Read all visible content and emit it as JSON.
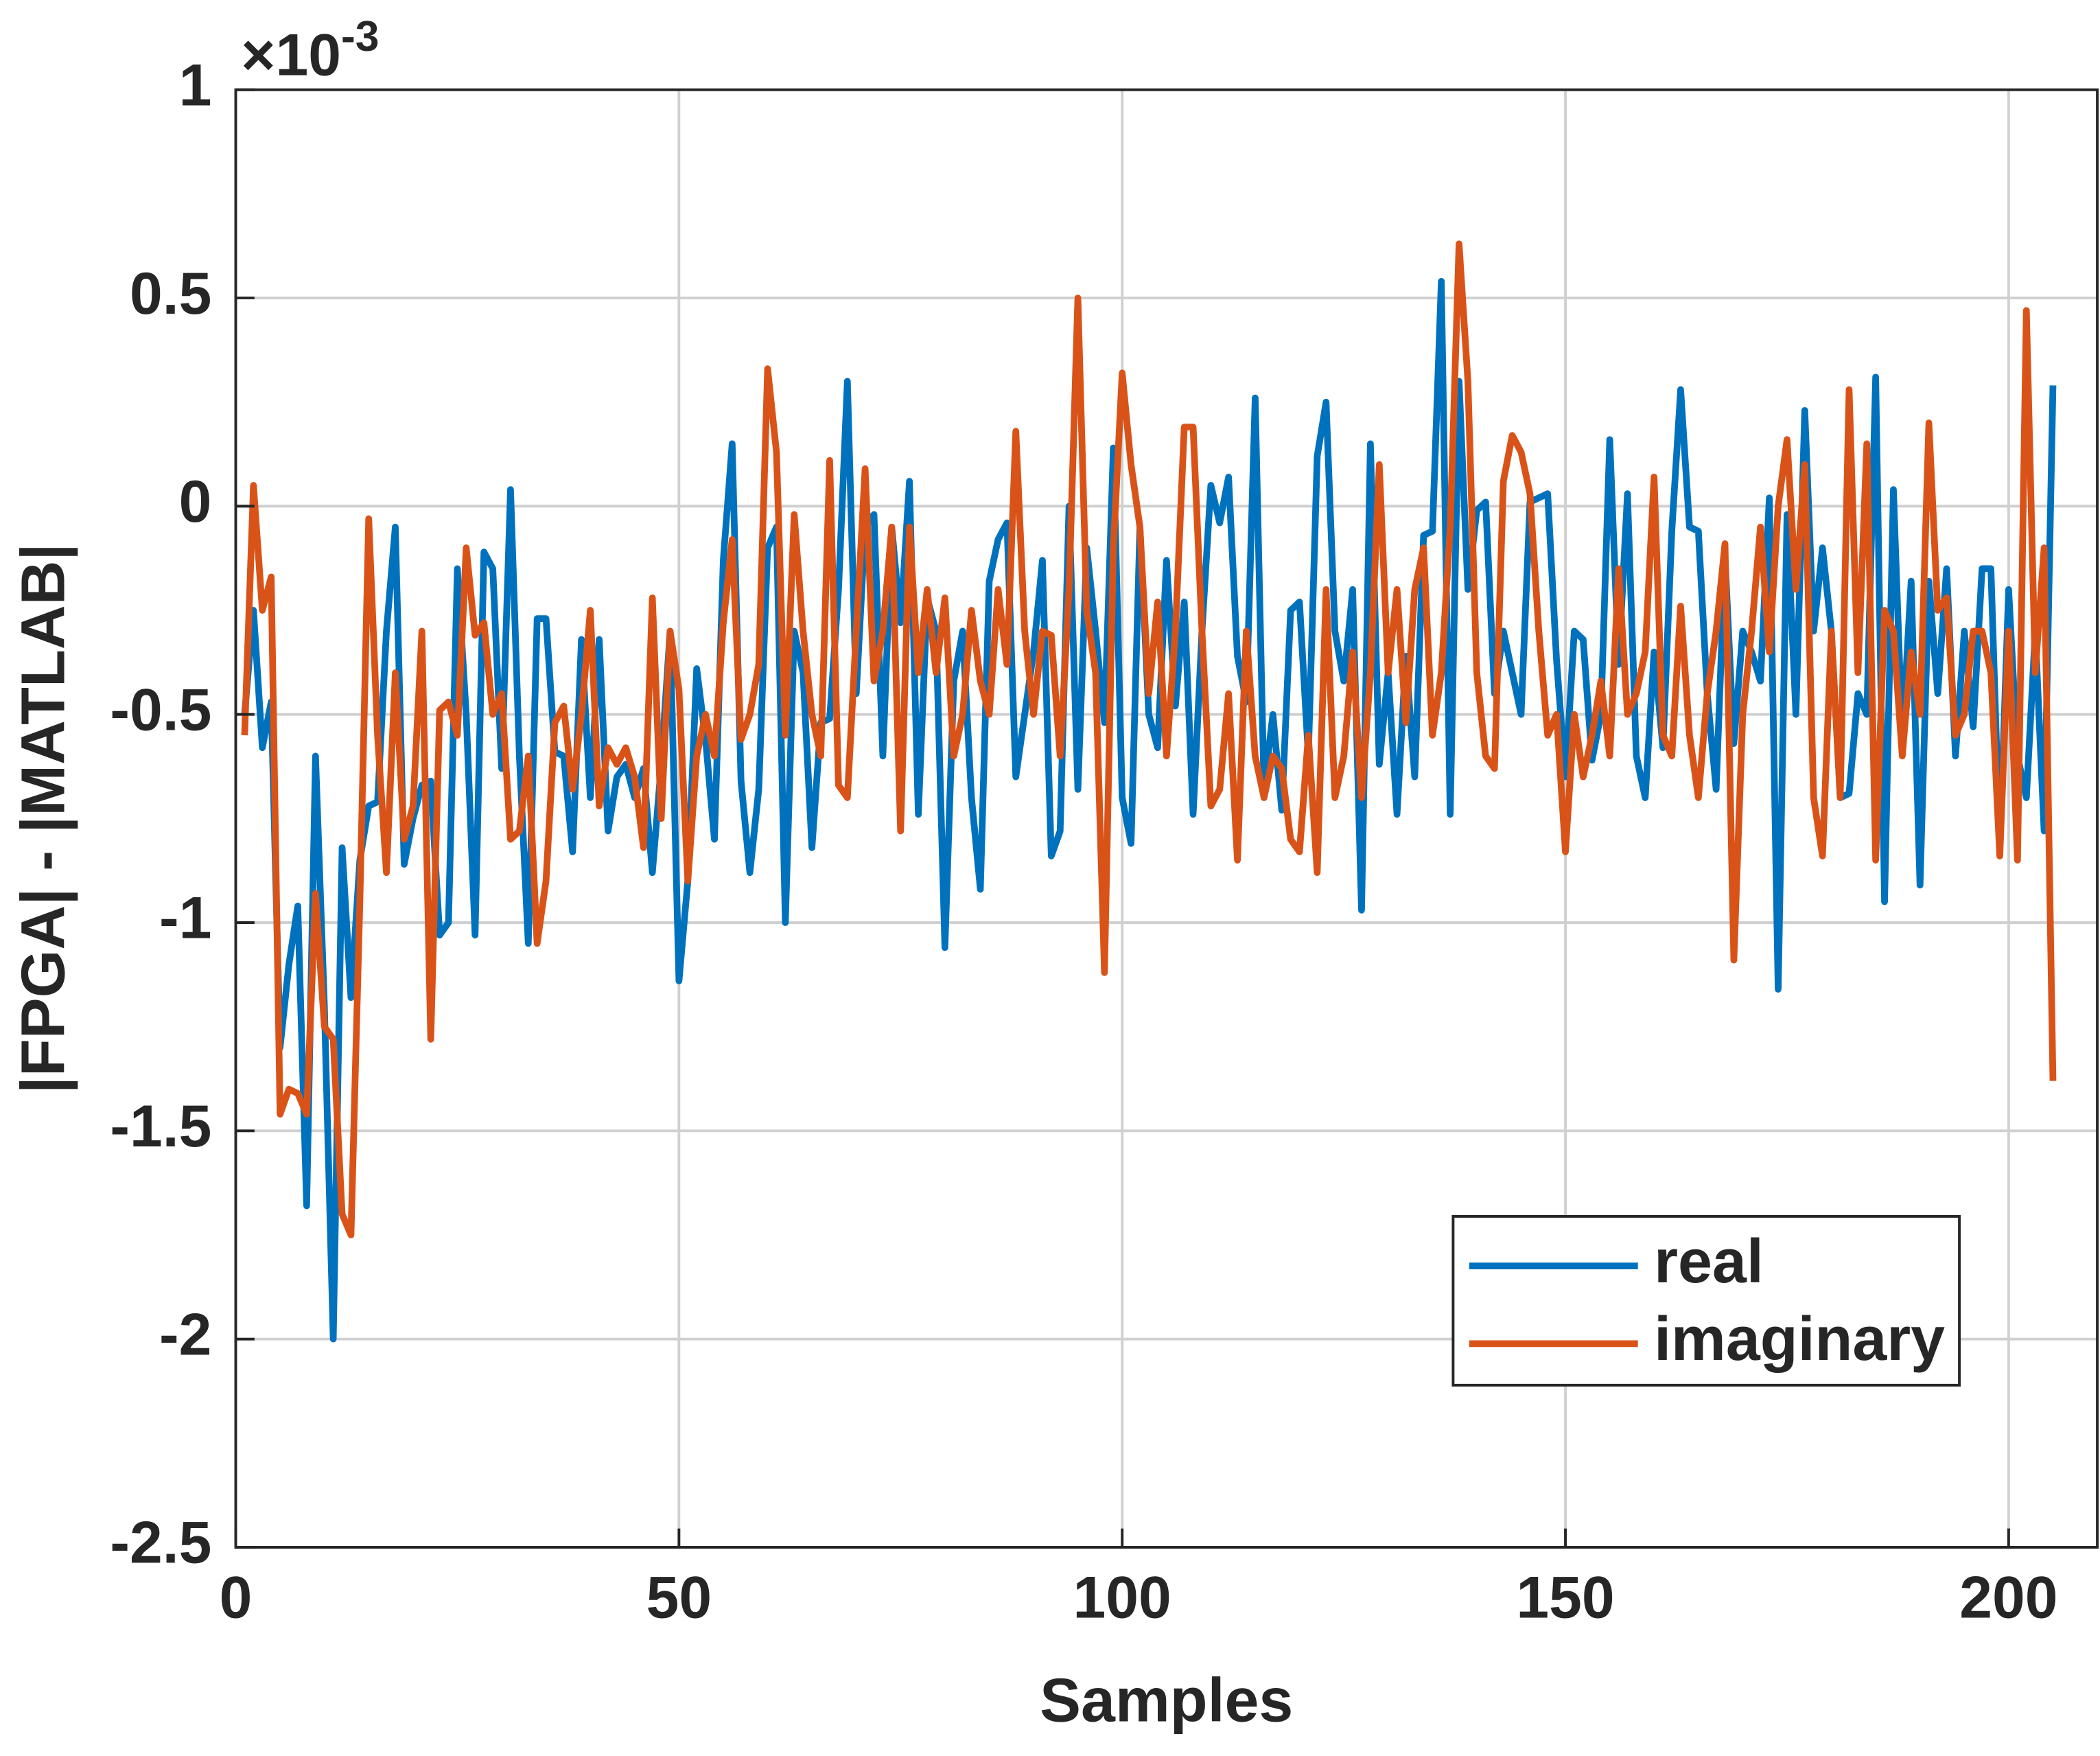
{
  "chart_data": {
    "type": "line",
    "xlabel": "Samples",
    "ylabel": "|FPGA| - |MATLAB|",
    "y_multiplier": {
      "base": "×10",
      "exponent": "-3"
    },
    "xlim": [
      0,
      210
    ],
    "xticks": [
      0,
      50,
      100,
      150,
      200
    ],
    "ylim": [
      -2.5,
      1
    ],
    "yticks": [
      -2.5,
      -2,
      -1.5,
      -1,
      -0.5,
      0,
      0.5,
      1
    ],
    "grid": true,
    "legend": "lower right",
    "x": [
      1,
      2,
      3,
      4,
      5,
      6,
      7,
      8,
      9,
      10,
      11,
      12,
      13,
      14,
      15,
      16,
      17,
      18,
      19,
      20,
      21,
      22,
      23,
      24,
      25,
      26,
      27,
      28,
      29,
      30,
      31,
      32,
      33,
      34,
      35,
      36,
      37,
      38,
      39,
      40,
      41,
      42,
      43,
      44,
      45,
      46,
      47,
      48,
      49,
      50,
      51,
      52,
      53,
      54,
      55,
      56,
      57,
      58,
      59,
      60,
      61,
      62,
      63,
      64,
      65,
      66,
      67,
      68,
      69,
      70,
      71,
      72,
      73,
      74,
      75,
      76,
      77,
      78,
      79,
      80,
      81,
      82,
      83,
      84,
      85,
      86,
      87,
      88,
      89,
      90,
      91,
      92,
      93,
      94,
      95,
      96,
      97,
      98,
      99,
      100,
      101,
      102,
      103,
      104,
      105,
      106,
      107,
      108,
      109,
      110,
      111,
      112,
      113,
      114,
      115,
      116,
      117,
      118,
      119,
      120,
      121,
      122,
      123,
      124,
      125,
      126,
      127,
      128,
      129,
      130,
      131,
      132,
      133,
      134,
      135,
      136,
      137,
      138,
      139,
      140,
      141,
      142,
      143,
      144,
      145,
      146,
      147,
      148,
      149,
      150,
      151,
      152,
      153,
      154,
      155,
      156,
      157,
      158,
      159,
      160,
      161,
      162,
      163,
      164,
      165,
      166,
      167,
      168,
      169,
      170,
      171,
      172,
      173,
      174,
      175,
      176,
      177,
      178,
      179,
      180,
      181,
      182,
      183,
      184,
      185,
      186,
      187,
      188,
      189,
      190,
      191,
      192,
      193,
      194,
      195,
      196,
      197,
      198,
      199,
      200,
      201,
      202,
      203,
      204,
      205
    ],
    "series": [
      {
        "name": "real",
        "color": "#0072bd",
        "values": [
          -0.5,
          -0.25,
          -0.58,
          -0.47,
          -1.3,
          -1.1,
          -0.96,
          -1.68,
          -0.6,
          -1.2,
          -2.0,
          -0.82,
          -1.18,
          -0.85,
          -0.72,
          -0.71,
          -0.3,
          -0.05,
          -0.86,
          -0.75,
          -0.67,
          -0.66,
          -1.03,
          -1.0,
          -0.15,
          -0.5,
          -1.03,
          -0.11,
          -0.15,
          -0.63,
          0.04,
          -0.6,
          -1.05,
          -0.27,
          -0.27,
          -0.59,
          -0.6,
          -0.83,
          -0.32,
          -0.7,
          -0.32,
          -0.78,
          -0.65,
          -0.62,
          -0.7,
          -0.63,
          -0.88,
          -0.62,
          -0.3,
          -1.14,
          -0.9,
          -0.39,
          -0.56,
          -0.8,
          -0.13,
          0.15,
          -0.66,
          -0.88,
          -0.68,
          -0.1,
          -0.05,
          -1.0,
          -0.3,
          -0.4,
          -0.82,
          -0.52,
          -0.51,
          -0.2,
          0.3,
          -0.45,
          -0.05,
          -0.02,
          -0.6,
          -0.05,
          -0.28,
          0.06,
          -0.74,
          -0.22,
          -0.3,
          -1.06,
          -0.42,
          -0.3,
          -0.7,
          -0.92,
          -0.18,
          -0.08,
          -0.04,
          -0.65,
          -0.5,
          -0.35,
          -0.13,
          -0.84,
          -0.78,
          0.0,
          -0.68,
          -0.1,
          -0.3,
          -0.52,
          0.14,
          -0.7,
          -0.81,
          -0.05,
          -0.5,
          -0.58,
          -0.13,
          -0.48,
          -0.23,
          -0.74,
          -0.3,
          0.05,
          -0.04,
          0.07,
          -0.36,
          -0.47,
          0.26,
          -0.68,
          -0.5,
          -0.73,
          -0.25,
          -0.23,
          -0.6,
          0.12,
          0.25,
          -0.3,
          -0.42,
          -0.2,
          -0.97,
          0.15,
          -0.62,
          -0.4,
          -0.74,
          -0.36,
          -0.65,
          -0.07,
          -0.06,
          0.54,
          -0.74,
          0.3,
          -0.2,
          -0.01,
          0.01,
          -0.45,
          -0.3,
          -0.4,
          -0.5,
          0.01,
          0.02,
          0.03,
          -0.37,
          -0.65,
          -0.3,
          -0.32,
          -0.61,
          -0.5,
          0.16,
          -0.38,
          0.03,
          -0.6,
          -0.7,
          -0.35,
          -0.58,
          -0.06,
          0.28,
          -0.05,
          -0.06,
          -0.45,
          -0.68,
          -0.12,
          -0.57,
          -0.3,
          -0.35,
          -0.42,
          0.02,
          -1.16,
          -0.02,
          -0.5,
          0.23,
          -0.3,
          -0.1,
          -0.3,
          -0.7,
          -0.69,
          -0.45,
          -0.5,
          0.31,
          -0.95,
          0.04,
          -0.56,
          -0.18,
          -0.91,
          -0.18,
          -0.45,
          -0.15,
          -0.6,
          -0.3,
          -0.53,
          -0.15,
          -0.15,
          -0.82,
          -0.2,
          -0.6,
          -0.7,
          -0.3,
          -0.78,
          0.29
        ]
      },
      {
        "name": "imaginary",
        "color": "#d95319",
        "values": [
          -0.55,
          0.05,
          -0.25,
          -0.17,
          -1.46,
          -1.4,
          -1.41,
          -1.46,
          -0.93,
          -1.25,
          -1.28,
          -1.7,
          -1.75,
          -0.95,
          -0.03,
          -0.55,
          -0.88,
          -0.4,
          -0.8,
          -0.72,
          -0.3,
          -1.28,
          -0.49,
          -0.47,
          -0.55,
          -0.1,
          -0.31,
          -0.28,
          -0.5,
          -0.45,
          -0.8,
          -0.78,
          -0.6,
          -1.05,
          -0.9,
          -0.52,
          -0.48,
          -0.68,
          -0.5,
          -0.25,
          -0.72,
          -0.58,
          -0.62,
          -0.58,
          -0.65,
          -0.82,
          -0.22,
          -0.75,
          -0.3,
          -0.44,
          -0.9,
          -0.6,
          -0.5,
          -0.6,
          -0.28,
          -0.08,
          -0.56,
          -0.5,
          -0.38,
          0.33,
          0.13,
          -0.55,
          -0.02,
          -0.3,
          -0.5,
          -0.6,
          0.11,
          -0.67,
          -0.7,
          -0.3,
          0.09,
          -0.42,
          -0.3,
          -0.05,
          -0.78,
          -0.05,
          -0.4,
          -0.2,
          -0.4,
          -0.22,
          -0.6,
          -0.5,
          -0.25,
          -0.42,
          -0.5,
          -0.2,
          -0.38,
          0.18,
          -0.3,
          -0.5,
          -0.3,
          -0.31,
          -0.6,
          -0.2,
          0.5,
          -0.25,
          -0.4,
          -1.12,
          -0.1,
          0.32,
          0.1,
          -0.05,
          -0.45,
          -0.23,
          -0.6,
          -0.3,
          0.19,
          0.19,
          -0.3,
          -0.72,
          -0.68,
          -0.45,
          -0.85,
          -0.3,
          -0.6,
          -0.7,
          -0.6,
          -0.63,
          -0.8,
          -0.83,
          -0.55,
          -0.88,
          -0.2,
          -0.7,
          -0.6,
          -0.35,
          -0.7,
          -0.4,
          0.1,
          -0.4,
          -0.2,
          -0.52,
          -0.2,
          -0.1,
          -0.55,
          -0.4,
          -0.05,
          0.63,
          0.3,
          -0.4,
          -0.6,
          -0.63,
          0.06,
          0.17,
          0.13,
          0.03,
          -0.3,
          -0.55,
          -0.5,
          -0.83,
          -0.5,
          -0.65,
          -0.55,
          -0.42,
          -0.6,
          -0.15,
          -0.5,
          -0.45,
          -0.35,
          0.07,
          -0.55,
          -0.6,
          -0.24,
          -0.55,
          -0.7,
          -0.45,
          -0.3,
          -0.09,
          -1.09,
          -0.5,
          -0.3,
          -0.05,
          -0.35,
          0.0,
          0.16,
          -0.2,
          0.1,
          -0.7,
          -0.84,
          -0.3,
          -0.7,
          0.28,
          -0.4,
          0.15,
          -0.85,
          -0.25,
          -0.3,
          -0.6,
          -0.35,
          -0.5,
          0.2,
          -0.25,
          -0.22,
          -0.55,
          -0.5,
          -0.3,
          -0.3,
          -0.4,
          -0.84,
          -0.3,
          -0.85,
          0.47,
          -0.4,
          -0.1,
          -1.38
        ]
      }
    ]
  }
}
